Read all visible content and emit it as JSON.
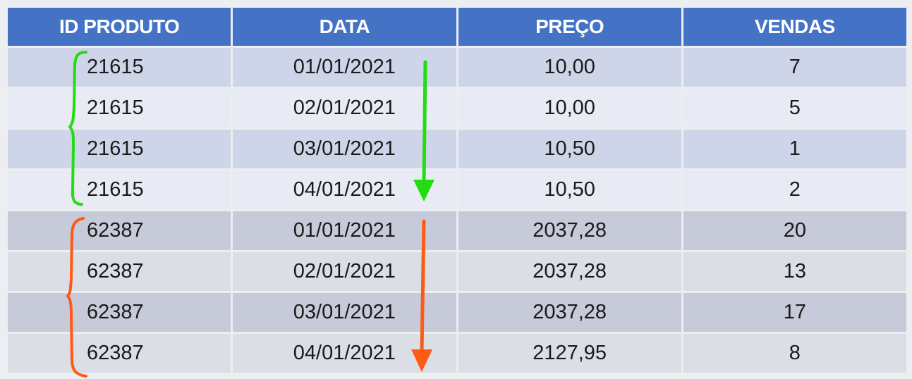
{
  "table": {
    "headers": [
      "ID PRODUTO",
      "DATA",
      "PREÇO",
      "VENDAS"
    ],
    "rows": [
      {
        "id": "21615",
        "data": "01/01/2021",
        "preco": "10,00",
        "vendas": "7"
      },
      {
        "id": "21615",
        "data": "02/01/2021",
        "preco": "10,00",
        "vendas": "5"
      },
      {
        "id": "21615",
        "data": "03/01/2021",
        "preco": "10,50",
        "vendas": "1"
      },
      {
        "id": "21615",
        "data": "04/01/2021",
        "preco": "10,50",
        "vendas": "2"
      },
      {
        "id": "62387",
        "data": "01/01/2021",
        "preco": "2037,28",
        "vendas": "20"
      },
      {
        "id": "62387",
        "data": "02/01/2021",
        "preco": "2037,28",
        "vendas": "13"
      },
      {
        "id": "62387",
        "data": "03/01/2021",
        "preco": "2037,28",
        "vendas": "17"
      },
      {
        "id": "62387",
        "data": "04/01/2021",
        "preco": "2127,95",
        "vendas": "8"
      }
    ]
  },
  "annotations": {
    "green_color": "#22dd11",
    "orange_color": "#ff5a14",
    "green_icons": [
      "brace-icon",
      "arrow-down-icon"
    ],
    "orange_icons": [
      "brace-icon",
      "arrow-down-icon"
    ]
  }
}
